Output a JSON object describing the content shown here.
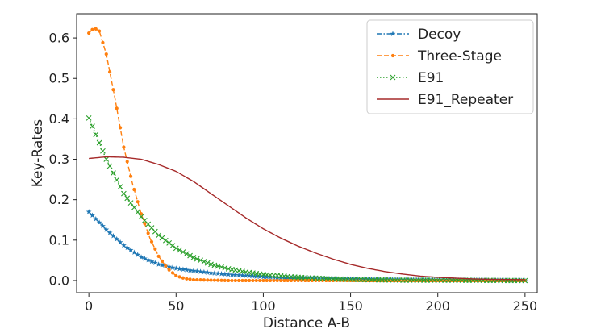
{
  "chart_data": {
    "type": "line",
    "title": "",
    "xlabel": "Distance A-B",
    "ylabel": "Key-Rates",
    "xlim": [
      -7,
      257
    ],
    "ylim": [
      -0.03,
      0.66
    ],
    "xticks": [
      0,
      50,
      100,
      150,
      200,
      250
    ],
    "yticks": [
      0.0,
      0.1,
      0.2,
      0.3,
      0.4,
      0.5,
      0.6
    ],
    "grid": false,
    "legend_position": "top-right",
    "series": [
      {
        "name": "Decoy",
        "color": "#1f77b4",
        "linestyle": "dashdot",
        "marker": "star",
        "points": [
          [
            0,
            0.17
          ],
          [
            10,
            0.126
          ],
          [
            20,
            0.087
          ],
          [
            30,
            0.058
          ],
          [
            40,
            0.04
          ],
          [
            50,
            0.03
          ],
          [
            60,
            0.024
          ],
          [
            70,
            0.019
          ],
          [
            80,
            0.015
          ],
          [
            90,
            0.012
          ],
          [
            100,
            0.009
          ],
          [
            120,
            0.006
          ],
          [
            140,
            0.004
          ],
          [
            160,
            0.003
          ],
          [
            180,
            0.002
          ],
          [
            200,
            0.001
          ],
          [
            220,
            0.001
          ],
          [
            250,
            0.0
          ]
        ]
      },
      {
        "name": "Three-Stage",
        "color": "#ff7f0e",
        "linestyle": "dashed",
        "marker": "dot",
        "points": [
          [
            0,
            0.612
          ],
          [
            3,
            0.625
          ],
          [
            6,
            0.617
          ],
          [
            10,
            0.56
          ],
          [
            15,
            0.45
          ],
          [
            20,
            0.33
          ],
          [
            25,
            0.24
          ],
          [
            30,
            0.165
          ],
          [
            35,
            0.105
          ],
          [
            40,
            0.06
          ],
          [
            45,
            0.03
          ],
          [
            50,
            0.012
          ],
          [
            55,
            0.005
          ],
          [
            60,
            0.002
          ],
          [
            70,
            0.001
          ],
          [
            80,
            0.0
          ],
          [
            100,
            0.0
          ],
          [
            150,
            0.0
          ],
          [
            200,
            0.0
          ],
          [
            250,
            0.0
          ]
        ]
      },
      {
        "name": "E91",
        "color": "#2ca02c",
        "linestyle": "dotted",
        "marker": "x",
        "points": [
          [
            0,
            0.402
          ],
          [
            10,
            0.3
          ],
          [
            20,
            0.215
          ],
          [
            30,
            0.158
          ],
          [
            40,
            0.112
          ],
          [
            50,
            0.08
          ],
          [
            60,
            0.057
          ],
          [
            70,
            0.04
          ],
          [
            80,
            0.029
          ],
          [
            90,
            0.021
          ],
          [
            100,
            0.015
          ],
          [
            120,
            0.008
          ],
          [
            140,
            0.004
          ],
          [
            160,
            0.002
          ],
          [
            180,
            0.001
          ],
          [
            200,
            0.001
          ],
          [
            250,
            0.0
          ]
        ]
      },
      {
        "name": "E91_Repeater",
        "color": "#a62a2a",
        "linestyle": "solid",
        "marker": "none",
        "points": [
          [
            0,
            0.302
          ],
          [
            10,
            0.306
          ],
          [
            20,
            0.305
          ],
          [
            30,
            0.3
          ],
          [
            40,
            0.287
          ],
          [
            50,
            0.27
          ],
          [
            60,
            0.245
          ],
          [
            70,
            0.215
          ],
          [
            80,
            0.185
          ],
          [
            90,
            0.155
          ],
          [
            100,
            0.128
          ],
          [
            110,
            0.105
          ],
          [
            120,
            0.085
          ],
          [
            130,
            0.068
          ],
          [
            140,
            0.053
          ],
          [
            150,
            0.04
          ],
          [
            160,
            0.03
          ],
          [
            170,
            0.022
          ],
          [
            180,
            0.016
          ],
          [
            190,
            0.011
          ],
          [
            200,
            0.008
          ],
          [
            210,
            0.006
          ],
          [
            220,
            0.004
          ],
          [
            230,
            0.003
          ],
          [
            250,
            0.002
          ]
        ]
      }
    ]
  }
}
